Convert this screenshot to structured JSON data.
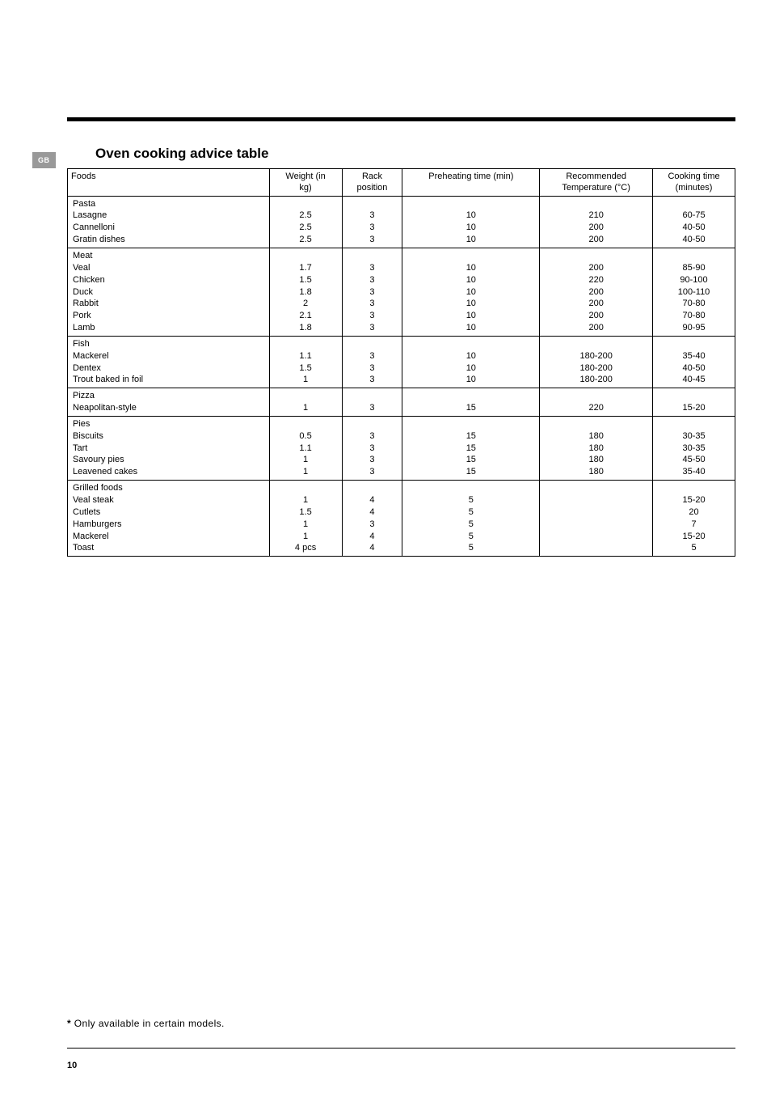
{
  "badge": "GB",
  "title": "Oven cooking advice table",
  "columns": [
    {
      "label": "Foods",
      "class": "col-foods"
    },
    {
      "label": "Weight (in kg)",
      "class": "col-weight"
    },
    {
      "label": "Rack position",
      "class": "col-rack"
    },
    {
      "label": "Preheating time (min)",
      "class": "col-preheat"
    },
    {
      "label": "Recommended Temperature (°C)",
      "class": "col-temp"
    },
    {
      "label": "Cooking time (minutes)",
      "class": "col-time"
    }
  ],
  "groups": [
    {
      "header": "Pasta",
      "rows": [
        {
          "food": "Lasagne",
          "weight": "2.5",
          "rack": "3",
          "preheat": "10",
          "temp": "210",
          "time": "60-75"
        },
        {
          "food": "Cannelloni",
          "weight": "2.5",
          "rack": "3",
          "preheat": "10",
          "temp": "200",
          "time": "40-50"
        },
        {
          "food": "Gratin dishes",
          "weight": "2.5",
          "rack": "3",
          "preheat": "10",
          "temp": "200",
          "time": "40-50"
        }
      ]
    },
    {
      "header": "Meat",
      "rows": [
        {
          "food": "Veal",
          "weight": "1.7",
          "rack": "3",
          "preheat": "10",
          "temp": "200",
          "time": "85-90"
        },
        {
          "food": "Chicken",
          "weight": "1.5",
          "rack": "3",
          "preheat": "10",
          "temp": "220",
          "time": "90-100"
        },
        {
          "food": "Duck",
          "weight": "1.8",
          "rack": "3",
          "preheat": "10",
          "temp": "200",
          "time": "100-110"
        },
        {
          "food": "Rabbit",
          "weight": "2",
          "rack": "3",
          "preheat": "10",
          "temp": "200",
          "time": "70-80"
        },
        {
          "food": "Pork",
          "weight": "2.1",
          "rack": "3",
          "preheat": "10",
          "temp": "200",
          "time": "70-80"
        },
        {
          "food": "Lamb",
          "weight": "1.8",
          "rack": "3",
          "preheat": "10",
          "temp": "200",
          "time": "90-95"
        }
      ]
    },
    {
      "header": "Fish",
      "rows": [
        {
          "food": "Mackerel",
          "weight": "1.1",
          "rack": "3",
          "preheat": "10",
          "temp": "180-200",
          "time": "35-40"
        },
        {
          "food": "Dentex",
          "weight": "1.5",
          "rack": "3",
          "preheat": "10",
          "temp": "180-200",
          "time": "40-50"
        },
        {
          "food": "Trout baked in foil",
          "weight": "1",
          "rack": "3",
          "preheat": "10",
          "temp": "180-200",
          "time": "40-45"
        }
      ]
    },
    {
      "header": "Pizza",
      "rows": [
        {
          "food": "Neapolitan-style",
          "weight": "1",
          "rack": "3",
          "preheat": "15",
          "temp": "220",
          "time": "15-20"
        }
      ]
    },
    {
      "header": "Pies",
      "rows": [
        {
          "food": "Biscuits",
          "weight": "0.5",
          "rack": "3",
          "preheat": "15",
          "temp": "180",
          "time": "30-35"
        },
        {
          "food": "Tart",
          "weight": "1.1",
          "rack": "3",
          "preheat": "15",
          "temp": "180",
          "time": "30-35"
        },
        {
          "food": "Savoury pies",
          "weight": "1",
          "rack": "3",
          "preheat": "15",
          "temp": "180",
          "time": "45-50"
        },
        {
          "food": "Leavened cakes",
          "weight": "1",
          "rack": "3",
          "preheat": "15",
          "temp": "180",
          "time": "35-40"
        }
      ]
    },
    {
      "header": "Grilled foods",
      "rows": [
        {
          "food": "Veal steak",
          "weight": "1",
          "rack": "4",
          "preheat": "5",
          "temp": "",
          "time": "15-20"
        },
        {
          "food": "Cutlets",
          "weight": "1.5",
          "rack": "4",
          "preheat": "5",
          "temp": "",
          "time": "20"
        },
        {
          "food": "Hamburgers",
          "weight": "1",
          "rack": "3",
          "preheat": "5",
          "temp": "",
          "time": "7"
        },
        {
          "food": "Mackerel",
          "weight": "1",
          "rack": "4",
          "preheat": "5",
          "temp": "",
          "time": "15-20"
        },
        {
          "food": "Toast",
          "weight": "4 pcs",
          "rack": "4",
          "preheat": "5",
          "temp": "",
          "time": "5"
        }
      ]
    }
  ],
  "footnote_marker": "*",
  "footnote_text": " Only available in certain models.",
  "page_number": "10",
  "colors": {
    "bar": "#000000",
    "badge_bg": "#999999",
    "badge_text": "#ffffff",
    "text": "#000000",
    "border": "#000000",
    "background": "#ffffff"
  },
  "typography": {
    "title_fontsize": 17,
    "title_weight": "bold",
    "table_fontsize": 11,
    "footnote_fontsize": 12,
    "page_number_fontsize": 11
  }
}
